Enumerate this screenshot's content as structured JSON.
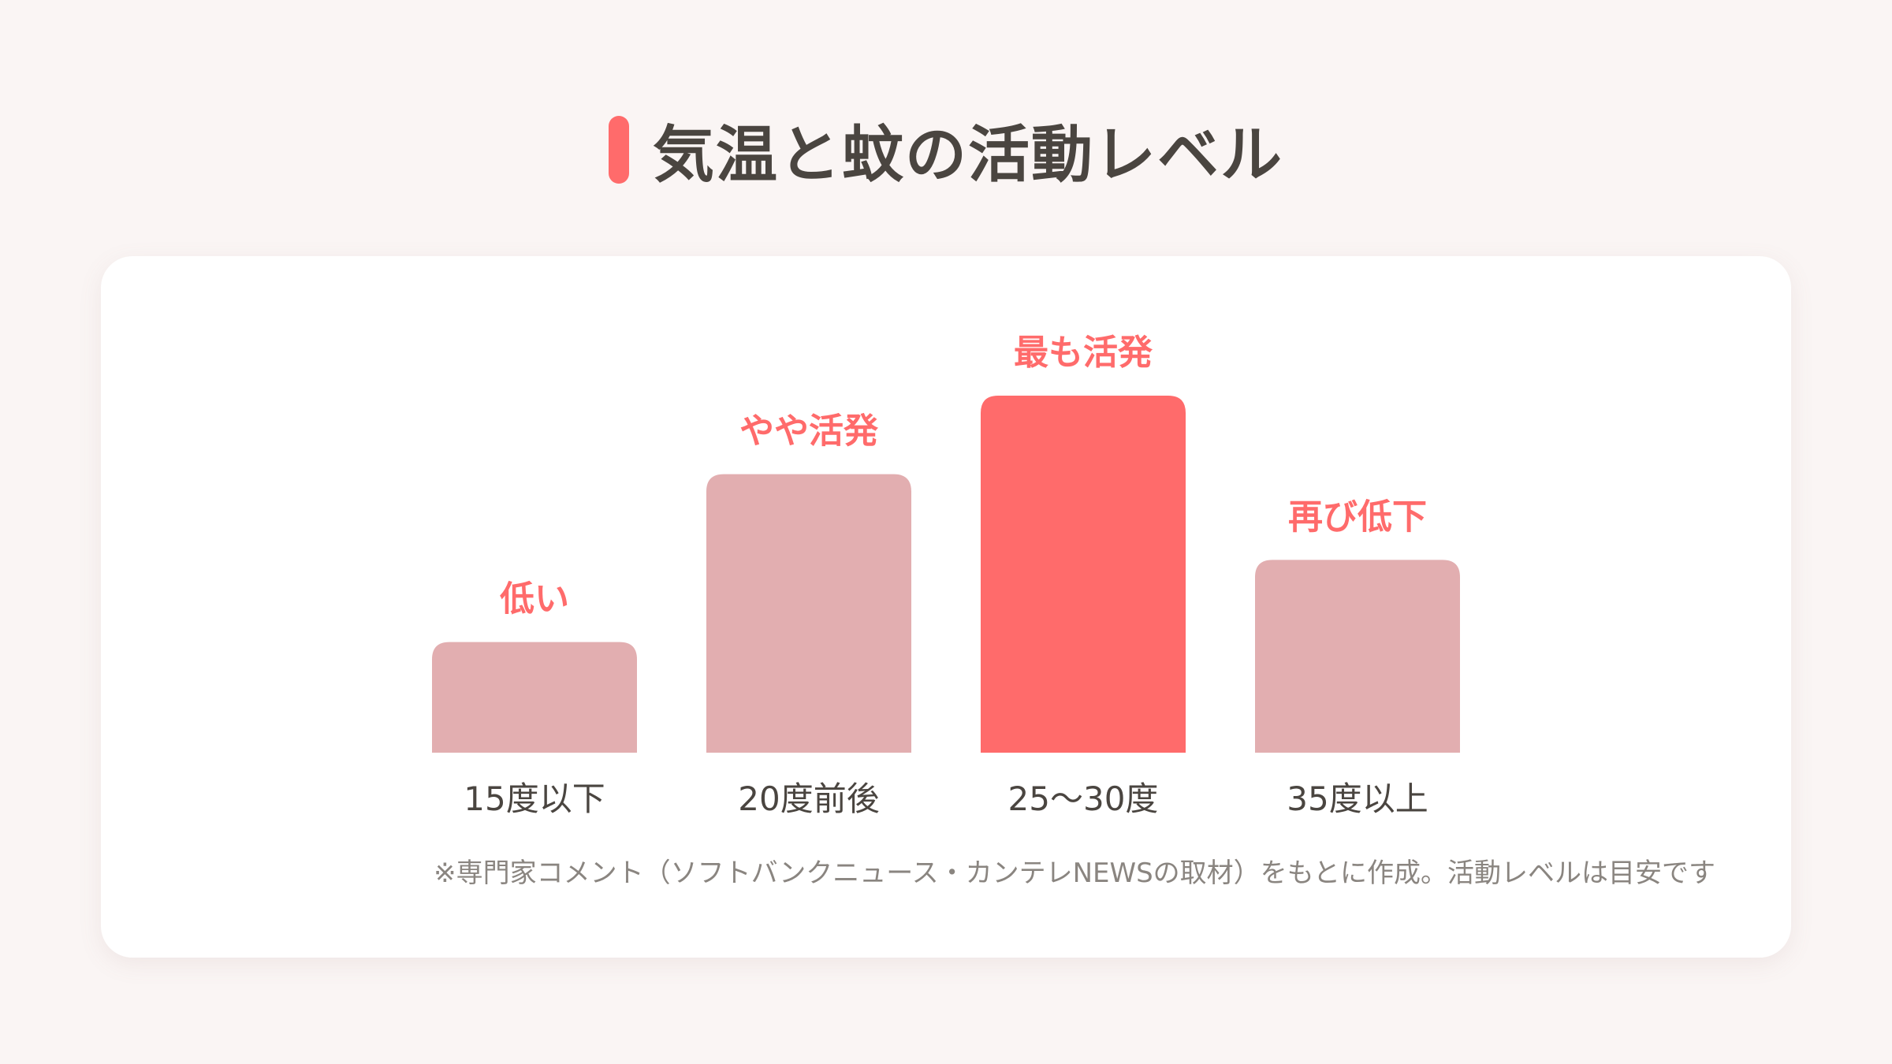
{
  "title": "気温と蚊の活動レベル",
  "colors": {
    "accent": "#ff6b6b",
    "bar": "#e2aeb0",
    "bar_highlight": "#ff6b6b",
    "label_status": "#ff6b6b",
    "label_category": "#4a4540",
    "background": "#faf5f4",
    "card": "#ffffff",
    "note": "#8a8580"
  },
  "chart_data": {
    "type": "bar",
    "title": "気温と蚊の活動レベル",
    "xlabel": "",
    "ylabel": "",
    "ylim": [
      0,
      100
    ],
    "grid": false,
    "categories": [
      "15度以下",
      "20度前後",
      "25〜30度",
      "35度以上"
    ],
    "values": [
      31,
      78,
      100,
      54
    ],
    "data_labels": [
      "低い",
      "やや活発",
      "最も活発",
      "再び低下"
    ],
    "highlight_index": 2
  },
  "note": "※専門家コメント（ソフトバンクニュース・カンテレNEWSの取材）をもとに作成。活動レベルは目安です"
}
